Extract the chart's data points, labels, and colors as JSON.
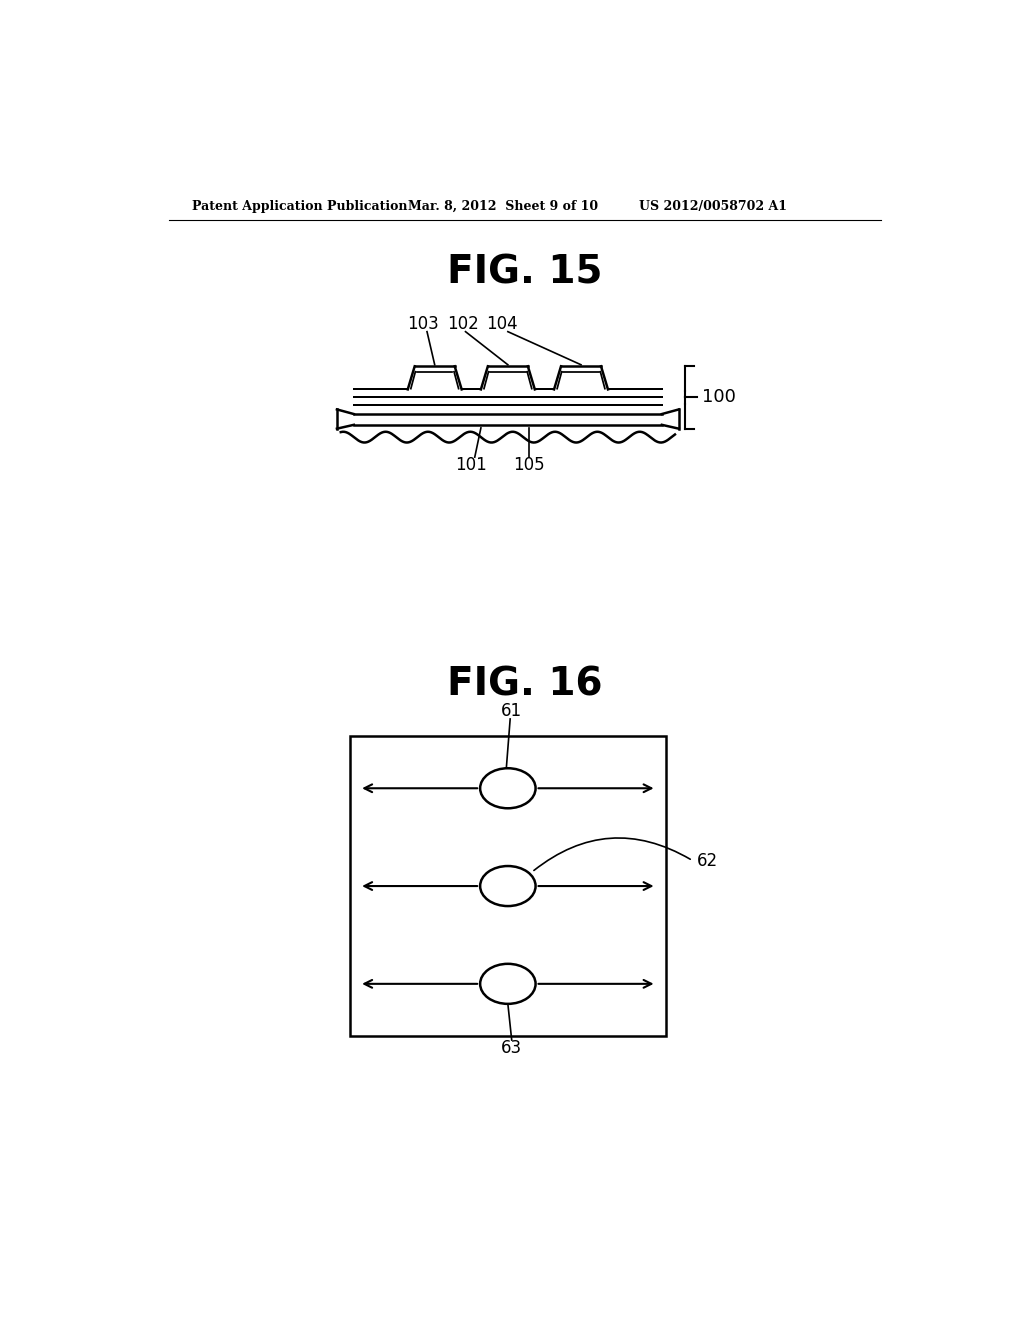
{
  "bg_color": "#ffffff",
  "header_left": "Patent Application Publication",
  "header_mid": "Mar. 8, 2012  Sheet 9 of 10",
  "header_right": "US 2012/0058702 A1",
  "fig15_title": "FIG. 15",
  "fig16_title": "FIG. 16",
  "label_100": "100",
  "label_101": "101",
  "label_102": "102",
  "label_103": "103",
  "label_104": "104",
  "label_105": "105",
  "label_61": "61",
  "label_62": "62",
  "label_63": "63"
}
